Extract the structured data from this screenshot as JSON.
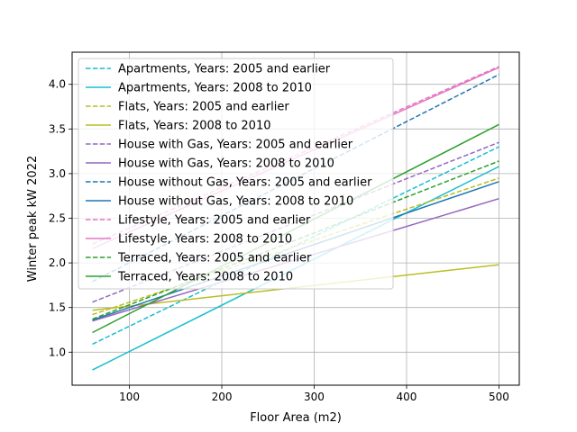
{
  "chart_data": {
    "type": "line",
    "title": "",
    "xlabel": "Floor Area (m2)",
    "ylabel": "Winter peak kW 2022",
    "xlim": [
      38,
      522
    ],
    "ylim": [
      0.63,
      4.36
    ],
    "xticks": [
      100,
      200,
      300,
      400,
      500
    ],
    "yticks": [
      1.0,
      1.5,
      2.0,
      2.5,
      3.0,
      3.5,
      4.0
    ],
    "xtick_labels": [
      "100",
      "200",
      "300",
      "400",
      "500"
    ],
    "ytick_labels": [
      "1.0",
      "1.5",
      "2.0",
      "2.5",
      "3.0",
      "3.5",
      "4.0"
    ],
    "grid": true,
    "legend_position": "top-left",
    "series": [
      {
        "name": "Apartments, Years: 2005 and earlier",
        "color": "#17becf",
        "style": "dashed",
        "x": [
          60,
          500
        ],
        "y": [
          1.09,
          3.3
        ]
      },
      {
        "name": "Apartments, Years: 2008 to 2010",
        "color": "#17becf",
        "style": "solid",
        "x": [
          60,
          500
        ],
        "y": [
          0.8,
          3.08
        ]
      },
      {
        "name": "Flats, Years: 2005 and earlier",
        "color": "#bcbd22",
        "style": "dashed",
        "x": [
          60,
          500
        ],
        "y": [
          1.42,
          2.95
        ]
      },
      {
        "name": "Flats, Years: 2008 to 2010",
        "color": "#bcbd22",
        "style": "solid",
        "x": [
          60,
          500
        ],
        "y": [
          1.47,
          1.98
        ]
      },
      {
        "name": "House with Gas, Years: 2005 and earlier",
        "color": "#9467bd",
        "style": "dashed",
        "x": [
          60,
          500
        ],
        "y": [
          1.56,
          3.35
        ]
      },
      {
        "name": "House with Gas, Years: 2008 to 2010",
        "color": "#9467bd",
        "style": "solid",
        "x": [
          60,
          500
        ],
        "y": [
          1.35,
          2.72
        ]
      },
      {
        "name": "House without Gas, Years: 2005 and earlier",
        "color": "#1f77b4",
        "style": "dashed",
        "x": [
          60,
          500
        ],
        "y": [
          1.79,
          4.11
        ]
      },
      {
        "name": "House without Gas, Years: 2008 to 2010",
        "color": "#1f77b4",
        "style": "solid",
        "x": [
          60,
          500
        ],
        "y": [
          1.36,
          2.91
        ]
      },
      {
        "name": "Lifestyle, Years: 2005 and earlier",
        "color": "#e377c2",
        "style": "dashed",
        "x": [
          60,
          500
        ],
        "y": [
          2.21,
          4.2
        ]
      },
      {
        "name": "Lifestyle, Years: 2008 to 2010",
        "color": "#e377c2",
        "style": "solid",
        "x": [
          60,
          500
        ],
        "y": [
          2.16,
          4.19
        ]
      },
      {
        "name": "Terraced, Years: 2005 and earlier",
        "color": "#2ca02c",
        "style": "dashed",
        "x": [
          60,
          500
        ],
        "y": [
          1.37,
          3.14
        ]
      },
      {
        "name": "Terraced, Years: 2008 to 2010",
        "color": "#2ca02c",
        "style": "solid",
        "x": [
          60,
          500
        ],
        "y": [
          1.22,
          3.55
        ]
      }
    ]
  }
}
